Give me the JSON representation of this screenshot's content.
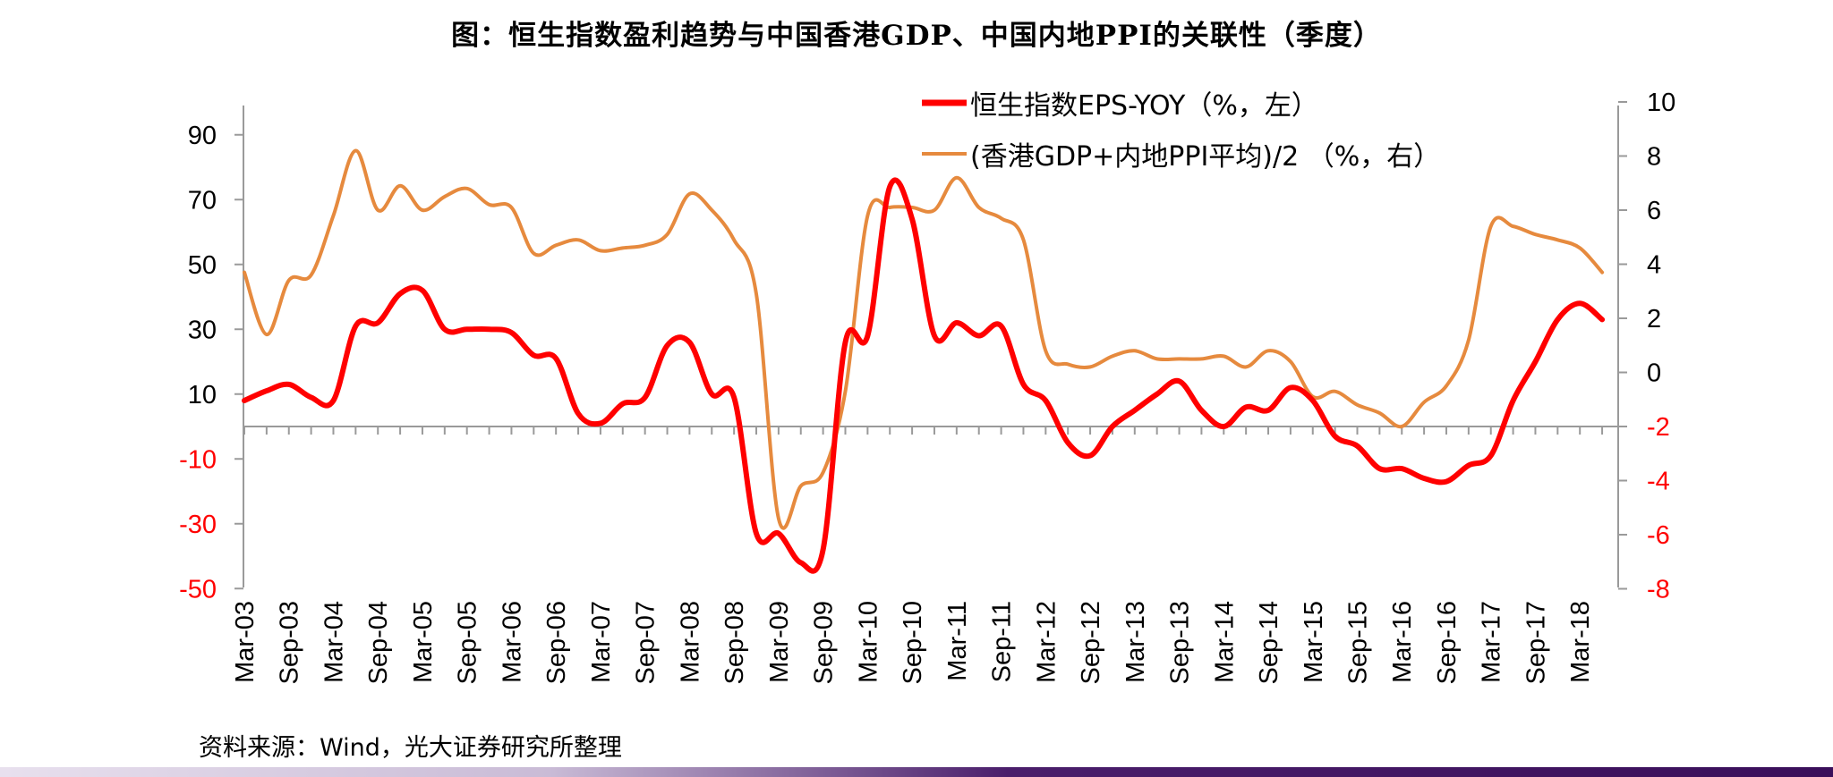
{
  "title": "图：恒生指数盈利趋势与中国香港GDP、中国内地PPI的关联性（季度）",
  "source": "资料来源：Wind，光大证券研究所整理",
  "chart_data": {
    "type": "line",
    "x": [
      "Mar-03",
      "Jun-03",
      "Sep-03",
      "Dec-03",
      "Mar-04",
      "Jun-04",
      "Sep-04",
      "Dec-04",
      "Mar-05",
      "Jun-05",
      "Sep-05",
      "Dec-05",
      "Mar-06",
      "Jun-06",
      "Sep-06",
      "Dec-06",
      "Mar-07",
      "Jun-07",
      "Sep-07",
      "Dec-07",
      "Mar-08",
      "Jun-08",
      "Sep-08",
      "Dec-08",
      "Mar-09",
      "Jun-09",
      "Sep-09",
      "Dec-09",
      "Mar-10",
      "Jun-10",
      "Sep-10",
      "Dec-10",
      "Mar-11",
      "Jun-11",
      "Sep-11",
      "Dec-11",
      "Mar-12",
      "Jun-12",
      "Sep-12",
      "Dec-12",
      "Mar-13",
      "Jun-13",
      "Sep-13",
      "Dec-13",
      "Mar-14",
      "Jun-14",
      "Sep-14",
      "Dec-14",
      "Mar-15",
      "Jun-15",
      "Sep-15",
      "Dec-15",
      "Mar-16",
      "Jun-16",
      "Sep-16",
      "Dec-16",
      "Mar-17",
      "Jun-17",
      "Sep-17",
      "Dec-17",
      "Mar-18",
      "Jun-18"
    ],
    "x_tick_labels": [
      "Mar-03",
      "Sep-03",
      "Mar-04",
      "Sep-04",
      "Mar-05",
      "Sep-05",
      "Mar-06",
      "Sep-06",
      "Mar-07",
      "Sep-07",
      "Mar-08",
      "Sep-08",
      "Mar-09",
      "Sep-09",
      "Mar-10",
      "Sep-10",
      "Mar-11",
      "Sep-11",
      "Mar-12",
      "Sep-12",
      "Mar-13",
      "Sep-13",
      "Mar-14",
      "Sep-14",
      "Mar-15",
      "Sep-15",
      "Mar-16",
      "Sep-16",
      "Mar-17",
      "Sep-17",
      "Mar-18"
    ],
    "y_left": {
      "ticks": [
        90,
        70,
        50,
        30,
        10,
        -10,
        -30,
        -50
      ],
      "ylim": [
        -50,
        100
      ]
    },
    "y_right": {
      "ticks": [
        10,
        8,
        6,
        4,
        2,
        0,
        -2,
        -4,
        -6,
        -8
      ],
      "ylim": [
        -8,
        10
      ]
    },
    "series": [
      {
        "name": "恒生指数EPS-YOY（%，左）",
        "axis": "left",
        "color": "#ff0000",
        "values": [
          8,
          11,
          13,
          9,
          8,
          31,
          32,
          41,
          42,
          30,
          30,
          30,
          29,
          22,
          21,
          4,
          1,
          7,
          9,
          25,
          26,
          10,
          9,
          -33,
          -33,
          -42,
          -38,
          26,
          28,
          74,
          64,
          28,
          32,
          28,
          31,
          13,
          8,
          -5,
          -9,
          0,
          5,
          10,
          14,
          5,
          0,
          6,
          5,
          12,
          8,
          -3,
          -6,
          -13,
          -13,
          -16,
          -17,
          -12,
          -9,
          8,
          20,
          33,
          38,
          33
        ]
      },
      {
        "name": "(香港GDP+内地PPI平均)/2 （%，右）",
        "axis": "right",
        "color": "#e68a3e",
        "values": [
          3.7,
          1.4,
          3.4,
          3.6,
          5.8,
          8.2,
          6,
          6.9,
          6,
          6.5,
          6.8,
          6.2,
          6.1,
          4.4,
          4.7,
          4.9,
          4.5,
          4.6,
          4.7,
          5.1,
          6.6,
          6,
          4.9,
          2.9,
          -5.4,
          -4.2,
          -3.7,
          -0.7,
          5.8,
          6.1,
          6.1,
          6,
          7.2,
          6.1,
          5.7,
          4.9,
          0.8,
          0.3,
          0.2,
          0.6,
          0.8,
          0.5,
          0.5,
          0.5,
          0.6,
          0.2,
          0.8,
          0.4,
          -0.9,
          -0.7,
          -1.2,
          -1.5,
          -2,
          -1.1,
          -0.5,
          1.2,
          5.4,
          5.4,
          5.1,
          4.9,
          4.6,
          3.7
        ]
      }
    ]
  }
}
